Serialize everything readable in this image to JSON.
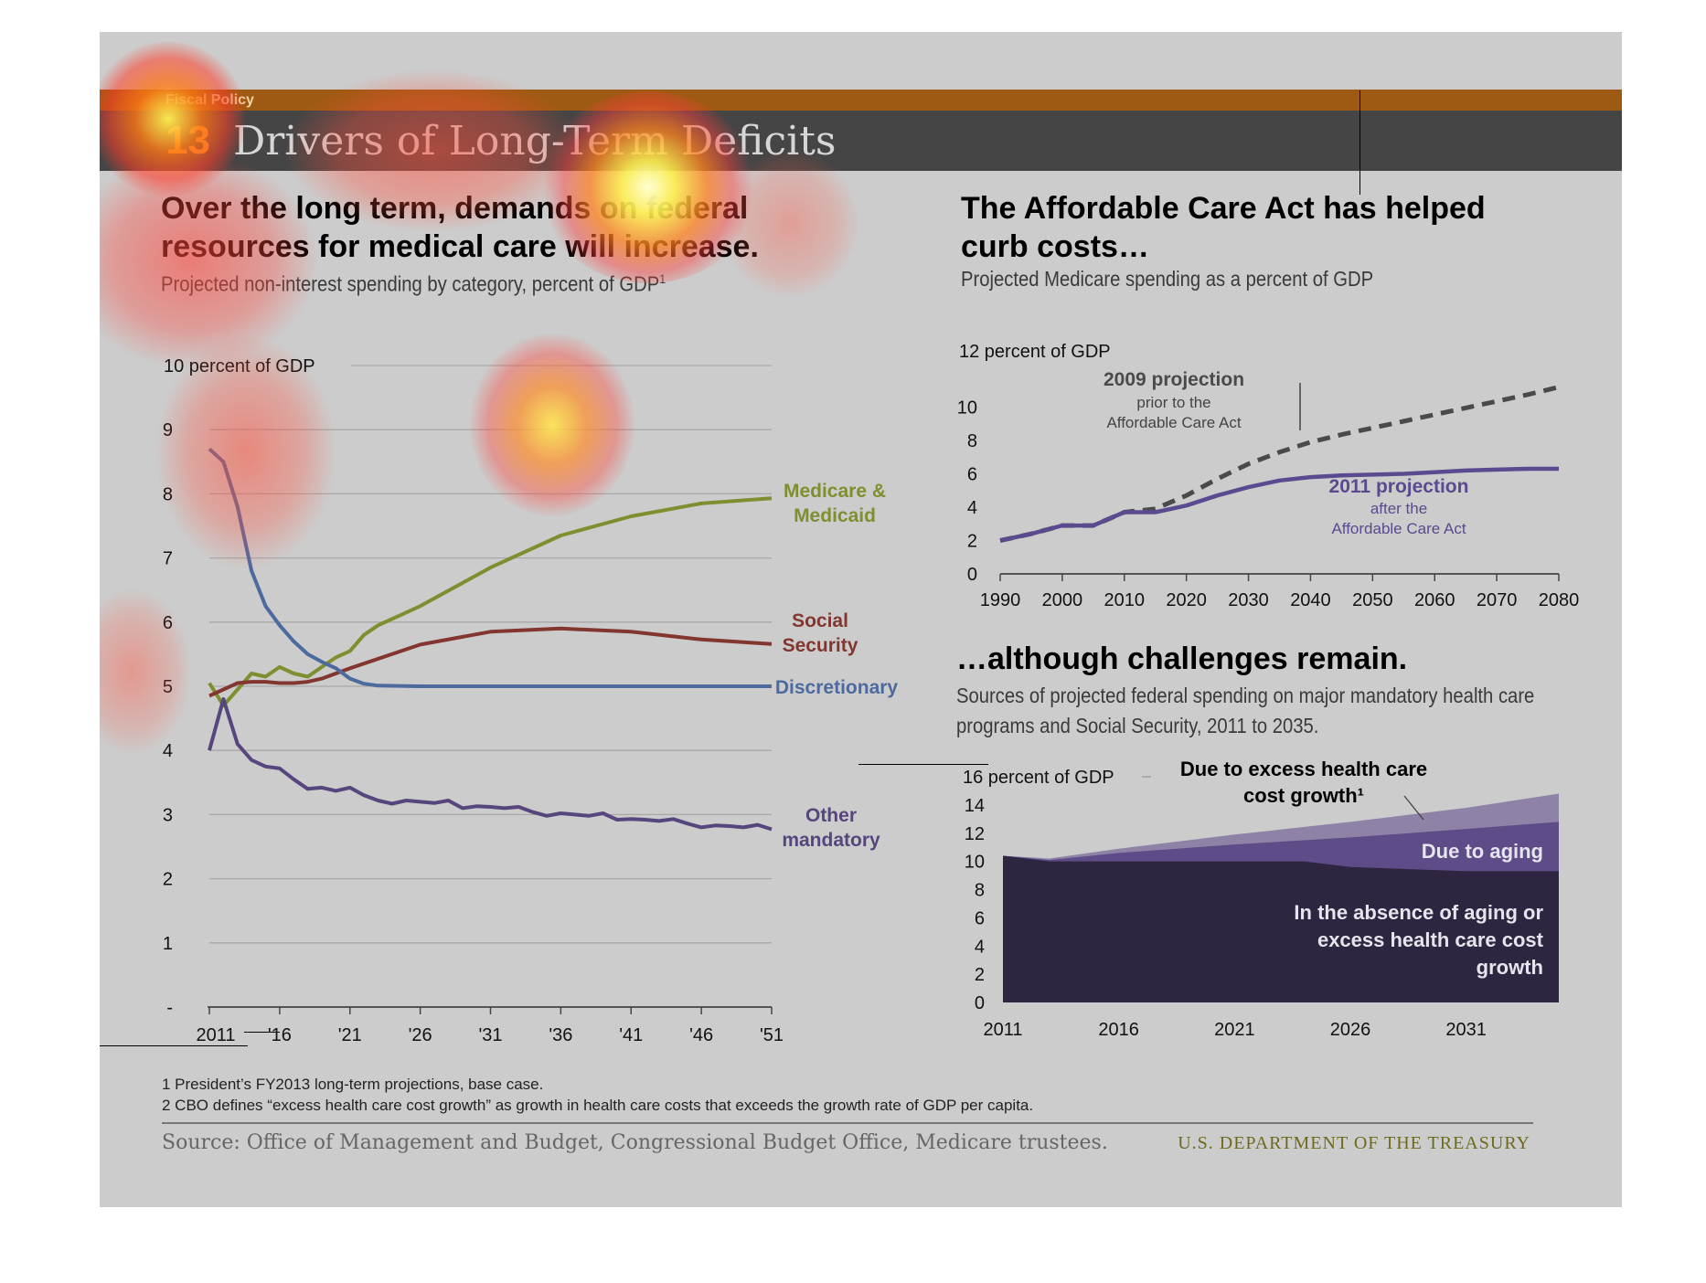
{
  "header": {
    "section": "Fiscal Policy",
    "number": "13",
    "title": "Drivers of Long-Term Deficits"
  },
  "left": {
    "heading_line1": "Over the long term, demands on federal",
    "heading_line2": "resources for medical care will increase.",
    "subheading": "Projected non-interest spending by category, percent of GDP",
    "subheading_sup": "1"
  },
  "right_top": {
    "heading_line1": "The Affordable Care Act has helped",
    "heading_line2": "curb costs…",
    "subheading": "Projected Medicare spending as a percent of GDP"
  },
  "right_bottom": {
    "heading": "…although challenges remain.",
    "subheading_line1": "Sources of projected federal spending on major mandatory health care",
    "subheading_line2": "programs and Social Security, 2011 to 2035."
  },
  "footnotes": {
    "note1": "1 President’s FY2013 long-term projections, base case.",
    "note2": "2 CBO defines “excess health care cost growth” as growth in health care costs that exceeds the growth rate of GDP per capita.",
    "source": "Source: Office of Management and Budget, Congressional Budget Office, Medicare trustees.",
    "org": "U.S. DEPARTMENT OF THE TREASURY"
  },
  "chart_data": [
    {
      "type": "line",
      "title": "Over the long term, demands on federal resources for medical care will increase.",
      "subtitle": "Projected non-interest spending by category, percent of GDP",
      "ylabel": "10 percent of GDP",
      "ylim": [
        0,
        10
      ],
      "yticks": [
        "-",
        "1",
        "2",
        "3",
        "4",
        "5",
        "6",
        "7",
        "8",
        "9"
      ],
      "xticks": [
        {
          "label": "2011",
          "year": 2011
        },
        {
          "label": "'16",
          "year": 2016
        },
        {
          "label": "'21",
          "year": 2021
        },
        {
          "label": "'26",
          "year": 2026
        },
        {
          "label": "'31",
          "year": 2031
        },
        {
          "label": "'36",
          "year": 2036
        },
        {
          "label": "'41",
          "year": 2041
        },
        {
          "label": "'46",
          "year": 2046
        },
        {
          "label": "'51",
          "year": 2051
        }
      ],
      "grid": true,
      "series": [
        {
          "name": "Medicare & Medicaid",
          "label_lines": [
            "Medicare &",
            "Medicaid"
          ],
          "color": "#7d8f2f",
          "points": [
            [
              2011,
              5.05
            ],
            [
              2012,
              4.7
            ],
            [
              2013,
              4.95
            ],
            [
              2014,
              5.2
            ],
            [
              2015,
              5.15
            ],
            [
              2016,
              5.3
            ],
            [
              2017,
              5.2
            ],
            [
              2018,
              5.15
            ],
            [
              2019,
              5.3
            ],
            [
              2020,
              5.45
            ],
            [
              2021,
              5.55
            ],
            [
              2022,
              5.8
            ],
            [
              2023,
              5.95
            ],
            [
              2026,
              6.25
            ],
            [
              2031,
              6.85
            ],
            [
              2036,
              7.35
            ],
            [
              2041,
              7.65
            ],
            [
              2046,
              7.85
            ],
            [
              2051,
              7.93
            ]
          ]
        },
        {
          "name": "Social Security",
          "label_lines": [
            "Social",
            "Security"
          ],
          "color": "#83362f",
          "points": [
            [
              2011,
              4.85
            ],
            [
              2012,
              4.95
            ],
            [
              2013,
              5.05
            ],
            [
              2014,
              5.07
            ],
            [
              2015,
              5.07
            ],
            [
              2016,
              5.05
            ],
            [
              2017,
              5.05
            ],
            [
              2018,
              5.07
            ],
            [
              2019,
              5.12
            ],
            [
              2021,
              5.28
            ],
            [
              2026,
              5.65
            ],
            [
              2031,
              5.85
            ],
            [
              2036,
              5.9
            ],
            [
              2041,
              5.85
            ],
            [
              2046,
              5.73
            ],
            [
              2051,
              5.66
            ]
          ]
        },
        {
          "name": "Discretionary",
          "label_lines": [
            "Discretionary"
          ],
          "color": "#4c6a9e",
          "points": [
            [
              2011,
              8.7
            ],
            [
              2012,
              8.5
            ],
            [
              2013,
              7.8
            ],
            [
              2014,
              6.8
            ],
            [
              2015,
              6.25
            ],
            [
              2016,
              5.95
            ],
            [
              2017,
              5.7
            ],
            [
              2018,
              5.5
            ],
            [
              2019,
              5.38
            ],
            [
              2020,
              5.28
            ],
            [
              2021,
              5.12
            ],
            [
              2022,
              5.04
            ],
            [
              2023,
              5.01
            ],
            [
              2026,
              5.0
            ],
            [
              2031,
              5.0
            ],
            [
              2036,
              5.0
            ],
            [
              2041,
              5.0
            ],
            [
              2046,
              5.0
            ],
            [
              2051,
              5.0
            ]
          ]
        },
        {
          "name": "Other mandatory",
          "label_lines": [
            "Other",
            "mandatory"
          ],
          "color": "#57467d",
          "points": [
            [
              2011,
              4.0
            ],
            [
              2012,
              4.8
            ],
            [
              2013,
              4.1
            ],
            [
              2014,
              3.85
            ],
            [
              2015,
              3.75
            ],
            [
              2016,
              3.72
            ],
            [
              2017,
              3.55
            ],
            [
              2018,
              3.4
            ],
            [
              2019,
              3.42
            ],
            [
              2020,
              3.37
            ],
            [
              2021,
              3.42
            ],
            [
              2022,
              3.3
            ],
            [
              2023,
              3.22
            ],
            [
              2024,
              3.17
            ],
            [
              2025,
              3.22
            ],
            [
              2026,
              3.2
            ],
            [
              2027,
              3.18
            ],
            [
              2028,
              3.22
            ],
            [
              2029,
              3.1
            ],
            [
              2030,
              3.13
            ],
            [
              2031,
              3.12
            ],
            [
              2032,
              3.1
            ],
            [
              2033,
              3.12
            ],
            [
              2034,
              3.04
            ],
            [
              2035,
              2.98
            ],
            [
              2036,
              3.02
            ],
            [
              2037,
              3.0
            ],
            [
              2038,
              2.98
            ],
            [
              2039,
              3.02
            ],
            [
              2040,
              2.92
            ],
            [
              2041,
              2.93
            ],
            [
              2042,
              2.92
            ],
            [
              2043,
              2.9
            ],
            [
              2044,
              2.93
            ],
            [
              2045,
              2.86
            ],
            [
              2046,
              2.8
            ],
            [
              2047,
              2.83
            ],
            [
              2048,
              2.82
            ],
            [
              2049,
              2.8
            ],
            [
              2050,
              2.84
            ],
            [
              2051,
              2.77
            ]
          ]
        }
      ]
    },
    {
      "type": "line",
      "title": "The Affordable Care Act has helped curb costs…",
      "subtitle": "Projected Medicare spending as a percent of GDP",
      "ylabel": "12 percent of GDP",
      "ylim": [
        0,
        12
      ],
      "yticks": [
        "0",
        "2",
        "4",
        "6",
        "8",
        "10"
      ],
      "xlim": [
        1990,
        2080
      ],
      "xticks": [
        "1990",
        "2000",
        "2010",
        "2020",
        "2030",
        "2040",
        "2050",
        "2060",
        "2070",
        "2080"
      ],
      "series": [
        {
          "name": "2009 projection",
          "note_lines": [
            "prior to the",
            "Affordable Care Act"
          ],
          "color": "#4a4a4a",
          "dashed": true,
          "points": [
            [
              1990,
              2.0
            ],
            [
              1995,
              2.4
            ],
            [
              2000,
              2.9
            ],
            [
              2005,
              2.9
            ],
            [
              2010,
              3.7
            ],
            [
              2015,
              3.9
            ],
            [
              2020,
              4.7
            ],
            [
              2025,
              5.7
            ],
            [
              2030,
              6.6
            ],
            [
              2035,
              7.3
            ],
            [
              2040,
              7.9
            ],
            [
              2045,
              8.35
            ],
            [
              2050,
              8.75
            ],
            [
              2055,
              9.15
            ],
            [
              2060,
              9.55
            ],
            [
              2065,
              9.95
            ],
            [
              2070,
              10.35
            ],
            [
              2075,
              10.75
            ],
            [
              2080,
              11.2
            ]
          ]
        },
        {
          "name": "2011 projection",
          "note_lines": [
            "after the",
            "Affordable Care Act"
          ],
          "color": "#5b4a8f",
          "dashed": false,
          "points": [
            [
              1990,
              2.0
            ],
            [
              1995,
              2.4
            ],
            [
              2000,
              2.9
            ],
            [
              2005,
              2.9
            ],
            [
              2010,
              3.7
            ],
            [
              2015,
              3.7
            ],
            [
              2020,
              4.1
            ],
            [
              2025,
              4.7
            ],
            [
              2030,
              5.2
            ],
            [
              2035,
              5.6
            ],
            [
              2040,
              5.8
            ],
            [
              2045,
              5.9
            ],
            [
              2050,
              5.95
            ],
            [
              2055,
              6.0
            ],
            [
              2060,
              6.1
            ],
            [
              2065,
              6.2
            ],
            [
              2070,
              6.25
            ],
            [
              2075,
              6.3
            ],
            [
              2080,
              6.3
            ]
          ]
        }
      ]
    },
    {
      "type": "area",
      "title": "…although challenges remain.",
      "subtitle": "Sources of projected federal spending on major mandatory health care programs and Social Security, 2011 to 2035.",
      "ylabel": "16 percent of GDP",
      "ylim": [
        0,
        16
      ],
      "yticks": [
        "0",
        "2",
        "4",
        "6",
        "8",
        "10",
        "12",
        "14"
      ],
      "xlim": [
        2011,
        2035
      ],
      "xticks": [
        "2011",
        "2016",
        "2021",
        "2026",
        "2031"
      ],
      "series": [
        {
          "name": "In the absence of aging or excess health care cost growth",
          "label_lines": [
            "In the absence of aging or",
            "excess health care cost",
            "growth"
          ],
          "color": "#2e2540",
          "points": [
            [
              2011,
              10.4
            ],
            [
              2013,
              10.0
            ],
            [
              2016,
              10.0
            ],
            [
              2021,
              10.0
            ],
            [
              2024,
              10.0
            ],
            [
              2026,
              9.6
            ],
            [
              2031,
              9.3
            ],
            [
              2035,
              9.3
            ]
          ]
        },
        {
          "name": "Due to aging",
          "label_lines": [
            "Due to aging"
          ],
          "color": "#5d4c87",
          "points": [
            [
              2011,
              10.4
            ],
            [
              2013,
              10.1
            ],
            [
              2016,
              10.6
            ],
            [
              2021,
              11.2
            ],
            [
              2026,
              11.7
            ],
            [
              2031,
              12.3
            ],
            [
              2035,
              12.8
            ]
          ]
        },
        {
          "name": "Due to excess health care cost growth",
          "label_lines": [
            "Due to excess  health care",
            "cost growth¹"
          ],
          "color": "#8e82a6",
          "points": [
            [
              2011,
              10.4
            ],
            [
              2013,
              10.2
            ],
            [
              2016,
              10.9
            ],
            [
              2021,
              11.9
            ],
            [
              2026,
              12.8
            ],
            [
              2031,
              13.8
            ],
            [
              2035,
              14.8
            ]
          ]
        }
      ]
    }
  ]
}
